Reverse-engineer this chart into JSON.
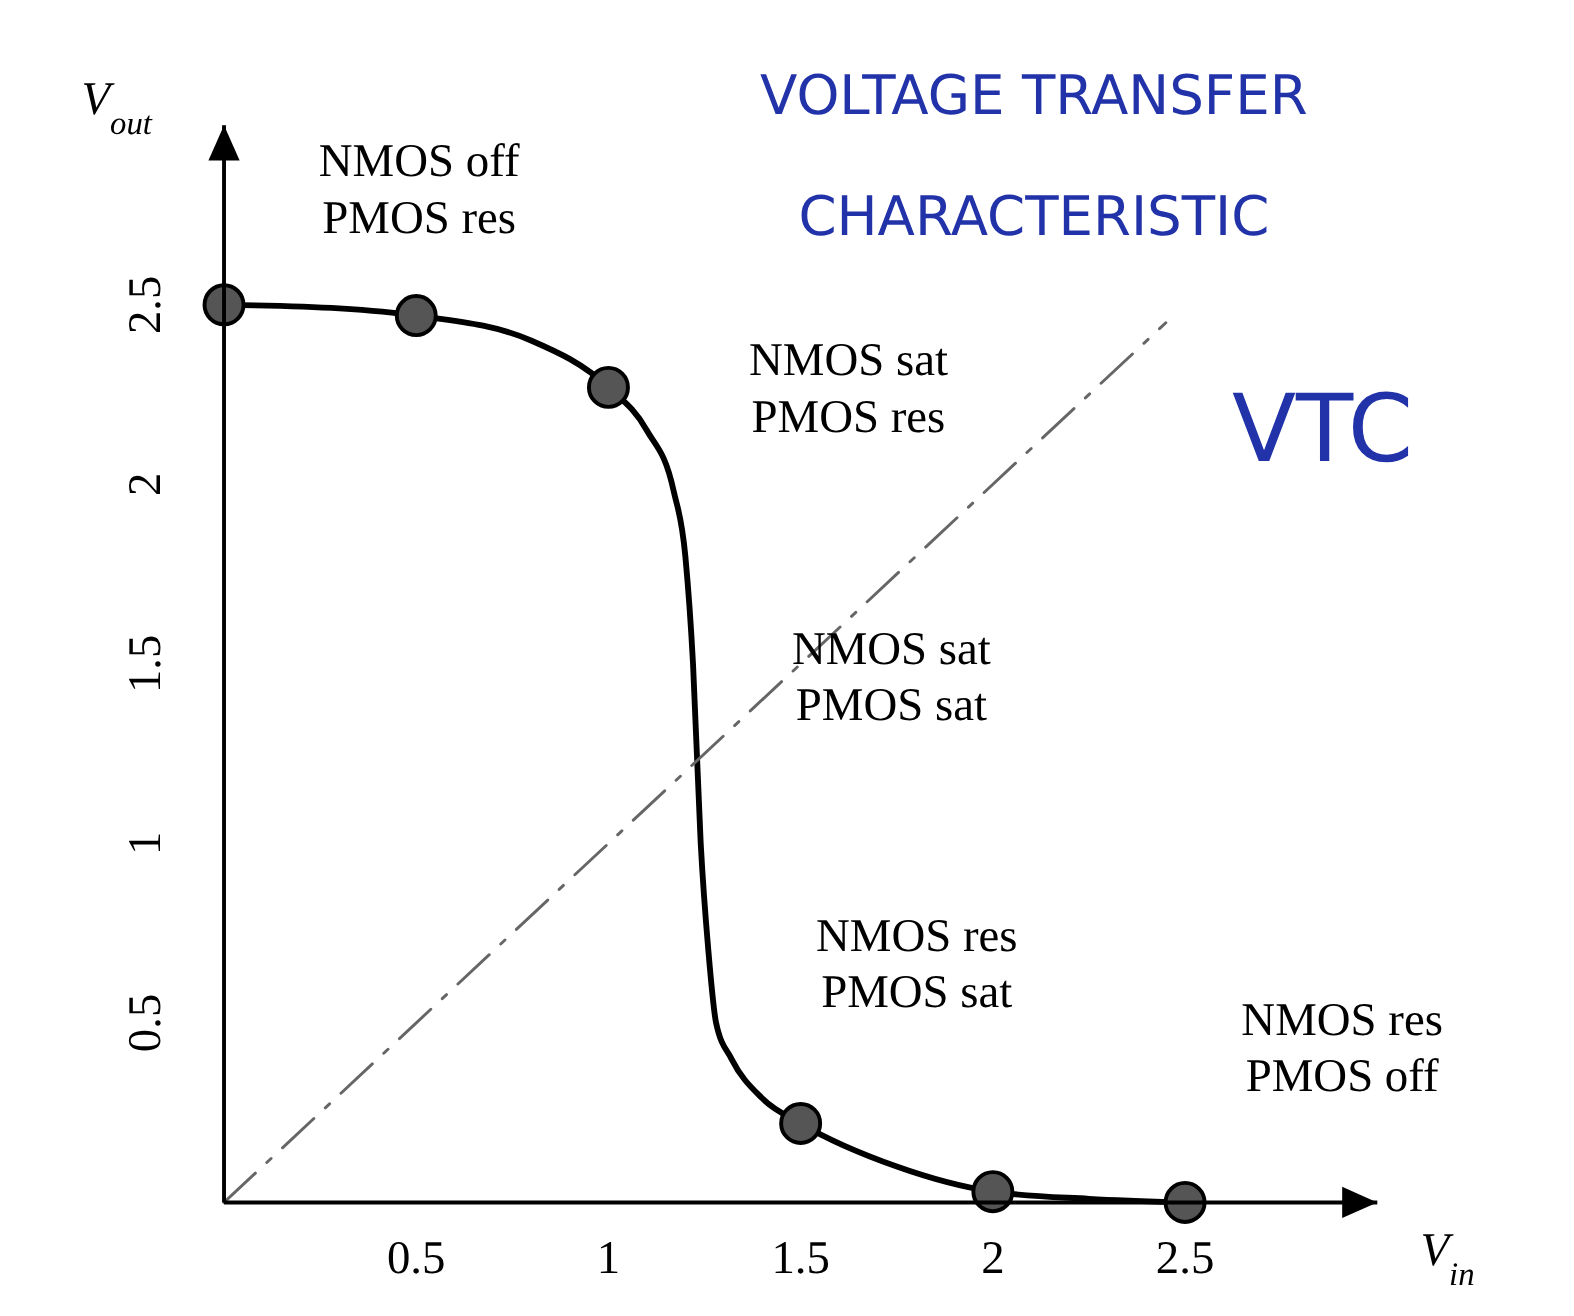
{
  "chart_data": {
    "type": "line",
    "title": "VOLTAGE TRANSFER CHARACTERISTIC",
    "subtitle": "VTC",
    "xlabel": "V$_{in}$",
    "ylabel": "V$_{out}$",
    "xlim": [
      0,
      3
    ],
    "ylim": [
      0,
      3
    ],
    "xticks": [
      0.5,
      1,
      1.5,
      2,
      2.5
    ],
    "yticks": [
      0.5,
      1,
      1.5,
      2,
      2.5
    ],
    "series": [
      {
        "color": "#000000",
        "marker": "none",
        "x": [
          0,
          0.3,
          0.5,
          0.8,
          1,
          1.1,
          1.17,
          1.2,
          1.22,
          1.24,
          1.26,
          1.28,
          1.32,
          1.4,
          1.5,
          1.75,
          2,
          2.25,
          2.5
        ],
        "values": [
          2.5,
          2.49,
          2.47,
          2.4,
          2.27,
          2.15,
          1.98,
          1.8,
          1.5,
          1.0,
          0.7,
          0.5,
          0.4,
          0.29,
          0.22,
          0.1,
          0.03,
          0.01,
          0
        ]
      },
      {
        "type": "scatter",
        "color": "#555555",
        "marker": "circle",
        "x": [
          0,
          0.5,
          1,
          1.5,
          2,
          2.5
        ],
        "values": [
          2.5,
          2.47,
          2.27,
          0.22,
          0.03,
          0
        ]
      },
      {
        "color": "#666666",
        "marker": "none",
        "line_style": "dashed",
        "x": [
          0,
          2.45
        ],
        "values": [
          0,
          2.45
        ]
      }
    ],
    "annotations": [
      "NMOS off\nPMOS res",
      "NMOS sat\nPMOS res",
      "NMOS sat\nPMOS sat",
      "NMOS res\nPMOS sat",
      "NMOS res\nPMOS off"
    ]
  }
}
